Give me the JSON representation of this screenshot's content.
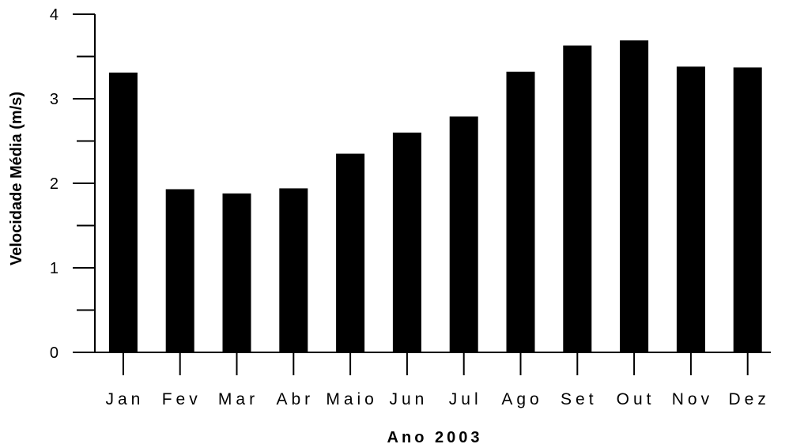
{
  "chart_data": {
    "type": "bar",
    "title": "",
    "xlabel": "Ano 2003",
    "ylabel": "Velocidade Média (m/s)",
    "categories": [
      "Jan",
      "Fev",
      "Mar",
      "Abr",
      "Maio",
      "Jun",
      "Jul",
      "Ago",
      "Set",
      "Out",
      "Nov",
      "Dez"
    ],
    "values": [
      3.31,
      1.93,
      1.88,
      1.94,
      2.35,
      2.6,
      2.79,
      3.32,
      3.63,
      3.69,
      3.38,
      3.37
    ],
    "ylim": [
      0,
      4
    ],
    "yticks": [
      0,
      1,
      2,
      3,
      4
    ],
    "ytick_labels": [
      "0",
      "1",
      "2",
      "3",
      "4"
    ],
    "bar_color": "#000000",
    "grid": false,
    "legend": false
  }
}
